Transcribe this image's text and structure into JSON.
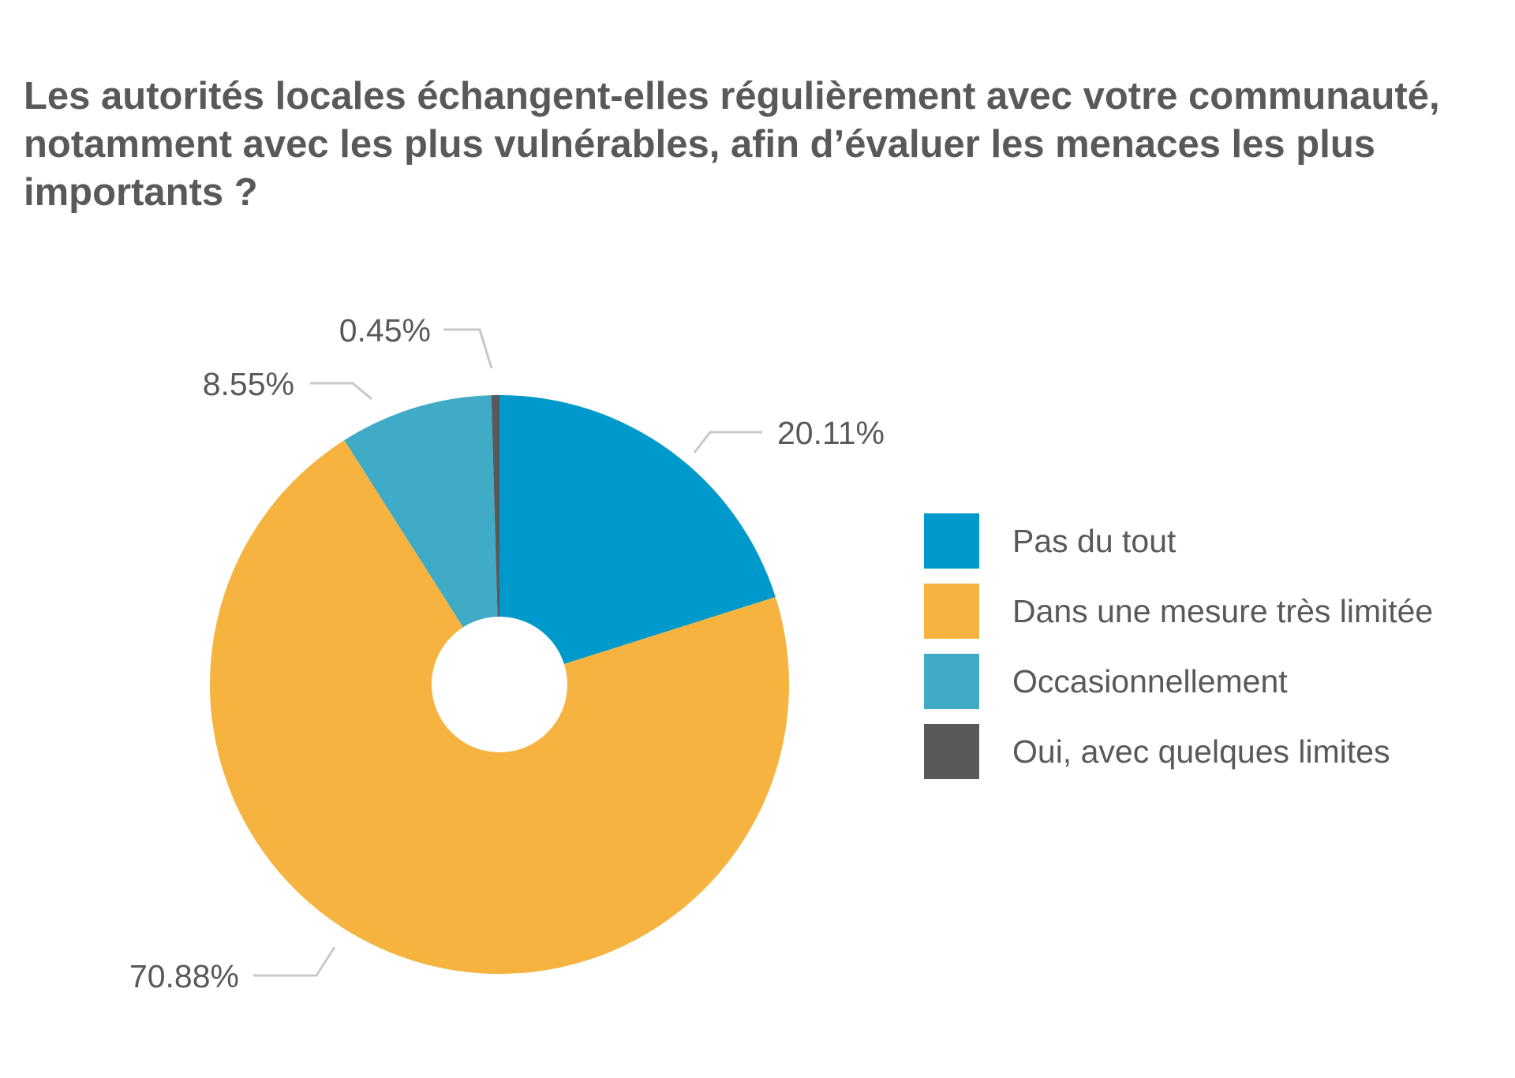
{
  "chart_data": {
    "type": "pie",
    "title": "Les autorités locales échangent-elles régulièrement avec votre communauté, notamment avec les plus vulnérables, afin d’évaluer les menaces les plus importants ?",
    "legend_position": "right",
    "slices": [
      {
        "label": "Pas du tout",
        "value": 20.11,
        "display": "20.11%",
        "color": "#0099cc"
      },
      {
        "label": "Dans une mesure très limitée",
        "value": 70.88,
        "display": "70.88%",
        "color": "#f6b340"
      },
      {
        "label": "Occasionnellement",
        "value": 8.55,
        "display": "8.55%",
        "color": "#40abc7"
      },
      {
        "label": "Oui, avec quelques limites",
        "value": 0.45,
        "display": "0.45%",
        "color": "#58595b"
      }
    ]
  }
}
